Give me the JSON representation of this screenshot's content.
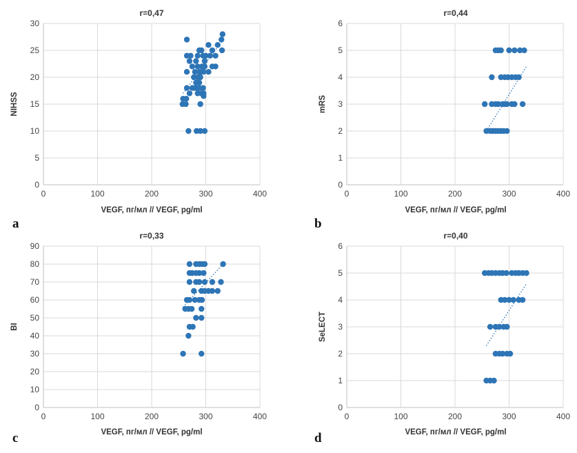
{
  "figure": {
    "colors": {
      "point": "#2e75b6",
      "trend": "#2e75b6",
      "grid": "#d9d9d9",
      "axis": "#bfbfbf"
    }
  },
  "chart_data": [
    {
      "id": "a",
      "type": "scatter",
      "panel_letter": "a",
      "title": "r=0,47",
      "xlabel": "VEGF, пг/мл // VEGF, pg/ml",
      "ylabel": "NIHSS",
      "xlim": [
        0,
        400
      ],
      "ylim": [
        0,
        30
      ],
      "xticks": [
        0,
        100,
        200,
        300,
        400
      ],
      "yticks": [
        0,
        5,
        10,
        15,
        20,
        25,
        30
      ],
      "grid": true,
      "trendline": {
        "style": "dotted",
        "x": [
          258,
          332
        ],
        "y": [
          17,
          27
        ]
      },
      "points": [
        [
          265,
          27
        ],
        [
          331,
          28
        ],
        [
          329,
          27
        ],
        [
          322,
          26
        ],
        [
          305,
          26
        ],
        [
          312,
          25
        ],
        [
          330,
          25
        ],
        [
          288,
          25
        ],
        [
          292,
          25
        ],
        [
          265,
          24
        ],
        [
          272,
          24
        ],
        [
          285,
          24
        ],
        [
          295,
          24
        ],
        [
          300,
          24
        ],
        [
          308,
          24
        ],
        [
          318,
          24
        ],
        [
          270,
          23
        ],
        [
          282,
          23
        ],
        [
          298,
          23
        ],
        [
          275,
          22
        ],
        [
          285,
          22
        ],
        [
          293,
          22
        ],
        [
          298,
          22
        ],
        [
          312,
          22
        ],
        [
          318,
          22
        ],
        [
          265,
          21
        ],
        [
          280,
          21
        ],
        [
          288,
          21
        ],
        [
          292,
          21
        ],
        [
          296,
          21
        ],
        [
          305,
          21
        ],
        [
          278,
          20
        ],
        [
          285,
          20
        ],
        [
          290,
          20
        ],
        [
          282,
          19
        ],
        [
          288,
          19
        ],
        [
          275,
          18
        ],
        [
          265,
          18
        ],
        [
          280,
          18
        ],
        [
          283,
          18
        ],
        [
          288,
          18
        ],
        [
          295,
          18
        ],
        [
          285,
          17
        ],
        [
          292,
          17
        ],
        [
          296,
          17
        ],
        [
          270,
          17
        ],
        [
          296,
          16.5
        ],
        [
          258,
          16
        ],
        [
          264,
          16
        ],
        [
          257,
          15
        ],
        [
          263,
          15
        ],
        [
          290,
          15
        ],
        [
          268,
          10
        ],
        [
          283,
          10
        ],
        [
          290,
          10
        ],
        [
          298,
          10
        ]
      ]
    },
    {
      "id": "b",
      "type": "scatter",
      "panel_letter": "b",
      "title": "r=0,44",
      "xlabel": "VEGF, пг/мл // VEGF, pg/ml",
      "ylabel": "mRS",
      "xlim": [
        0,
        400
      ],
      "ylim": [
        0,
        6
      ],
      "xticks": [
        0,
        100,
        200,
        300,
        400
      ],
      "yticks": [
        0,
        1,
        2,
        3,
        4,
        5,
        6
      ],
      "grid": true,
      "trendline": {
        "style": "dotted",
        "x": [
          258,
          332
        ],
        "y": [
          2.0,
          4.4
        ]
      },
      "points": [
        [
          275,
          5
        ],
        [
          280,
          5
        ],
        [
          285,
          5
        ],
        [
          300,
          5
        ],
        [
          310,
          5
        ],
        [
          320,
          5
        ],
        [
          328,
          5
        ],
        [
          268,
          4
        ],
        [
          285,
          4
        ],
        [
          292,
          4
        ],
        [
          298,
          4
        ],
        [
          305,
          4
        ],
        [
          312,
          4
        ],
        [
          318,
          4
        ],
        [
          255,
          3
        ],
        [
          268,
          3
        ],
        [
          275,
          3
        ],
        [
          280,
          3
        ],
        [
          288,
          3
        ],
        [
          292,
          3
        ],
        [
          296,
          3
        ],
        [
          305,
          3
        ],
        [
          310,
          3
        ],
        [
          325,
          3
        ],
        [
          258,
          2
        ],
        [
          265,
          2
        ],
        [
          270,
          2
        ],
        [
          275,
          2
        ],
        [
          280,
          2
        ],
        [
          285,
          2
        ],
        [
          290,
          2
        ],
        [
          296,
          2
        ]
      ]
    },
    {
      "id": "c",
      "type": "scatter",
      "panel_letter": "c",
      "title": "r=0,33",
      "xlabel": "VEGF, пг/мл // VEGF, pg/ml",
      "ylabel": "BI",
      "xlim": [
        0,
        400
      ],
      "ylim": [
        0,
        90
      ],
      "xticks": [
        0,
        100,
        200,
        300,
        400
      ],
      "yticks": [
        0,
        10,
        20,
        30,
        40,
        50,
        60,
        70,
        80,
        90
      ],
      "grid": true,
      "trendline": {
        "style": "dotted",
        "x": [
          258,
          332
        ],
        "y": [
          56,
          80
        ]
      },
      "points": [
        [
          270,
          80
        ],
        [
          282,
          80
        ],
        [
          288,
          80
        ],
        [
          293,
          80
        ],
        [
          298,
          80
        ],
        [
          332,
          80
        ],
        [
          270,
          75
        ],
        [
          275,
          75
        ],
        [
          282,
          75
        ],
        [
          288,
          75
        ],
        [
          296,
          75
        ],
        [
          270,
          70
        ],
        [
          282,
          70
        ],
        [
          288,
          70
        ],
        [
          298,
          70
        ],
        [
          312,
          70
        ],
        [
          328,
          70
        ],
        [
          278,
          65
        ],
        [
          292,
          65
        ],
        [
          298,
          65
        ],
        [
          305,
          65
        ],
        [
          312,
          65
        ],
        [
          322,
          65
        ],
        [
          265,
          60
        ],
        [
          270,
          60
        ],
        [
          280,
          60
        ],
        [
          288,
          60
        ],
        [
          293,
          60
        ],
        [
          262,
          55
        ],
        [
          268,
          55
        ],
        [
          274,
          55
        ],
        [
          292,
          55
        ],
        [
          282,
          50
        ],
        [
          292,
          50
        ],
        [
          270,
          45
        ],
        [
          276,
          45
        ],
        [
          268,
          40
        ],
        [
          258,
          30
        ],
        [
          292,
          30
        ]
      ]
    },
    {
      "id": "d",
      "type": "scatter",
      "panel_letter": "d",
      "title": "r=0,40",
      "xlabel": "VEGF, пг/мл // VEGF, pg/ml",
      "ylabel": "SeLECT",
      "xlim": [
        0,
        400
      ],
      "ylim": [
        0,
        6
      ],
      "xticks": [
        0,
        100,
        200,
        300,
        400
      ],
      "yticks": [
        0,
        1,
        2,
        3,
        4,
        5,
        6
      ],
      "grid": true,
      "trendline": {
        "style": "dotted",
        "x": [
          258,
          332
        ],
        "y": [
          2.3,
          4.6
        ]
      },
      "points": [
        [
          255,
          5
        ],
        [
          262,
          5
        ],
        [
          268,
          5
        ],
        [
          275,
          5
        ],
        [
          282,
          5
        ],
        [
          288,
          5
        ],
        [
          295,
          5
        ],
        [
          305,
          5
        ],
        [
          312,
          5
        ],
        [
          318,
          5
        ],
        [
          325,
          5
        ],
        [
          332,
          5
        ],
        [
          285,
          4
        ],
        [
          292,
          4
        ],
        [
          300,
          4
        ],
        [
          308,
          4
        ],
        [
          318,
          4
        ],
        [
          325,
          4
        ],
        [
          265,
          3
        ],
        [
          275,
          3
        ],
        [
          282,
          3
        ],
        [
          290,
          3
        ],
        [
          296,
          3
        ],
        [
          275,
          2
        ],
        [
          282,
          2
        ],
        [
          288,
          2
        ],
        [
          296,
          2
        ],
        [
          302,
          2
        ],
        [
          258,
          1
        ],
        [
          265,
          1
        ],
        [
          272,
          1
        ]
      ]
    }
  ]
}
